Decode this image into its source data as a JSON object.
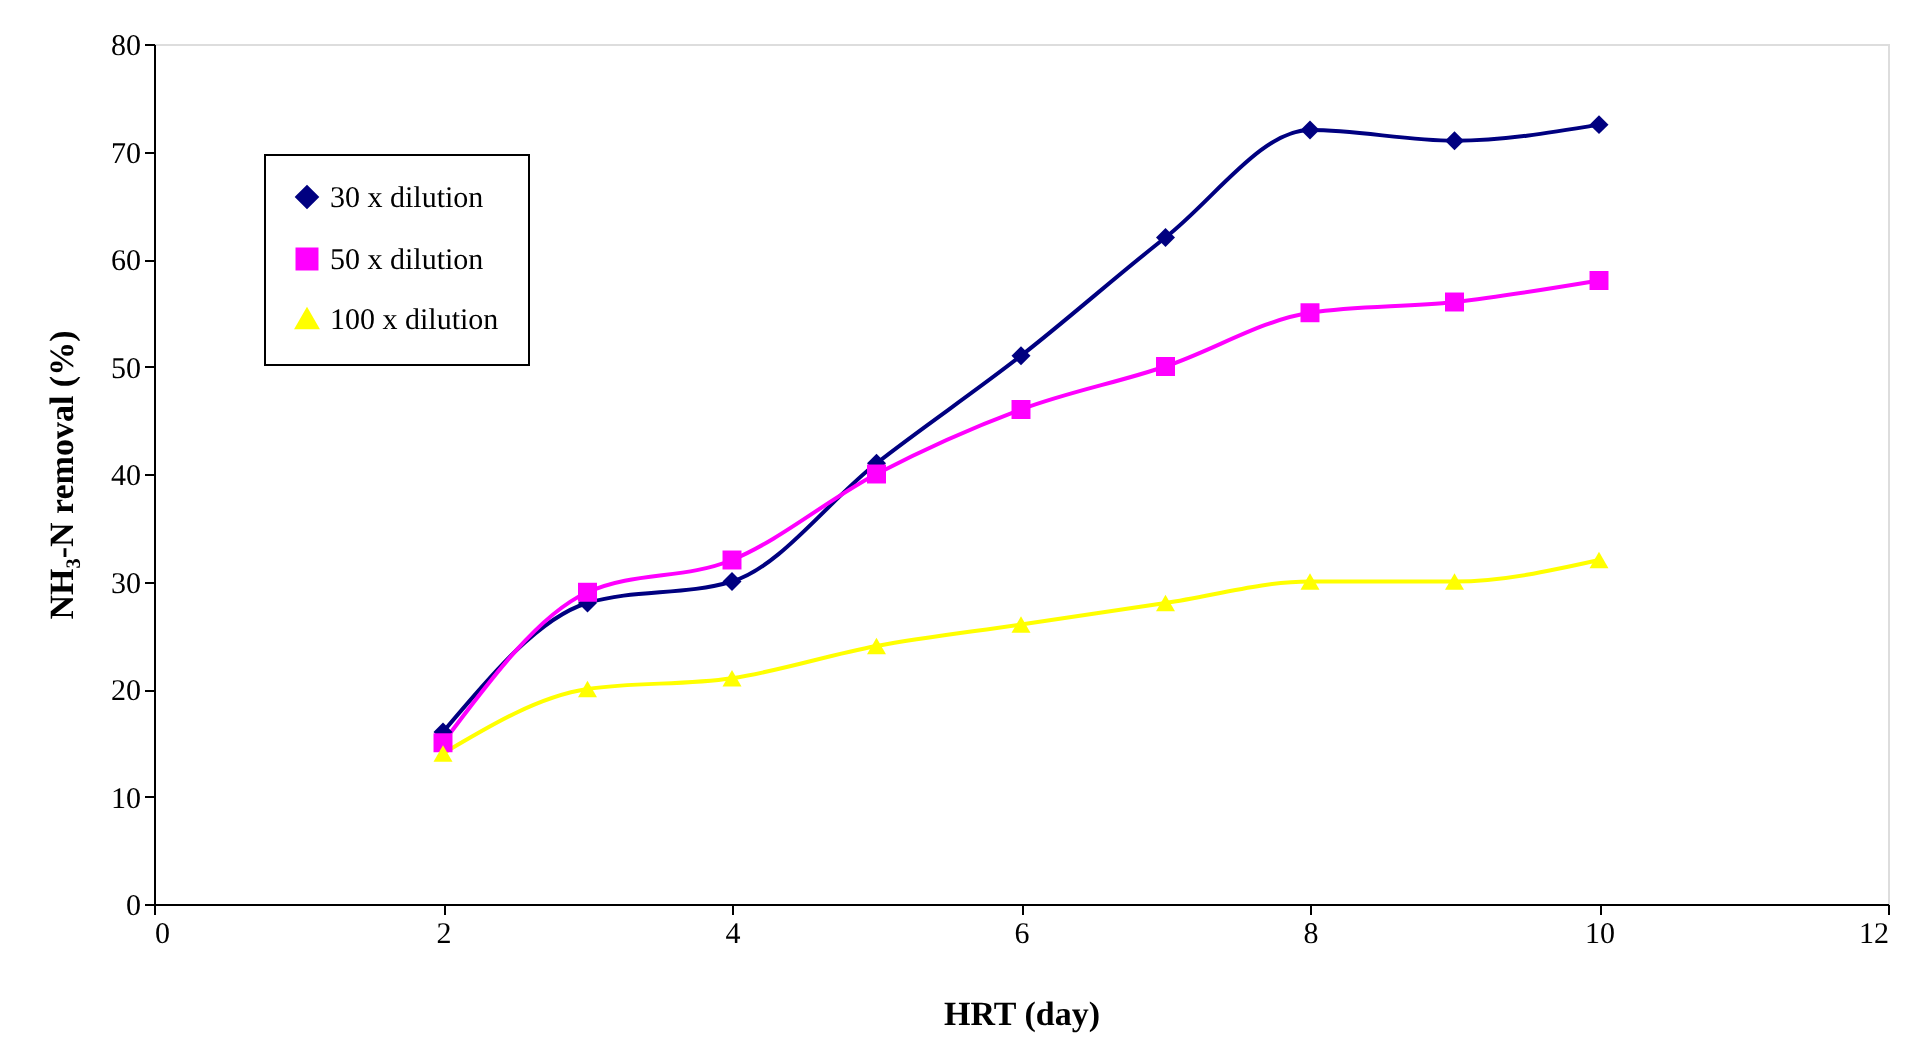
{
  "chart_data": {
    "type": "line",
    "xlabel": "HRT (day)",
    "ylabel": "NH₃-N removal (%)",
    "x": [
      2,
      3,
      4,
      5,
      6,
      7,
      8,
      9,
      10
    ],
    "series": [
      {
        "name": "30 x dilution",
        "color": "#000080",
        "marker": "diamond",
        "values": [
          16,
          28,
          30,
          41,
          51,
          62,
          72,
          71,
          72.5
        ]
      },
      {
        "name": "50 x dilution",
        "color": "#ff00ff",
        "marker": "square",
        "values": [
          15,
          29,
          32,
          40,
          46,
          50,
          55,
          56,
          58
        ]
      },
      {
        "name": "100 x dilution",
        "color": "#ffff00",
        "marker": "triangle",
        "values": [
          14,
          20,
          21,
          24,
          26,
          28,
          30,
          30,
          32
        ]
      }
    ],
    "xlim": [
      0,
      12
    ],
    "xticks": [
      0,
      2,
      4,
      6,
      8,
      10,
      12
    ],
    "ylim": [
      0,
      80
    ],
    "yticks": [
      0,
      10,
      20,
      30,
      40,
      50,
      60,
      70,
      80
    ],
    "grid": false,
    "legend": "top left",
    "line_style": "solid"
  }
}
